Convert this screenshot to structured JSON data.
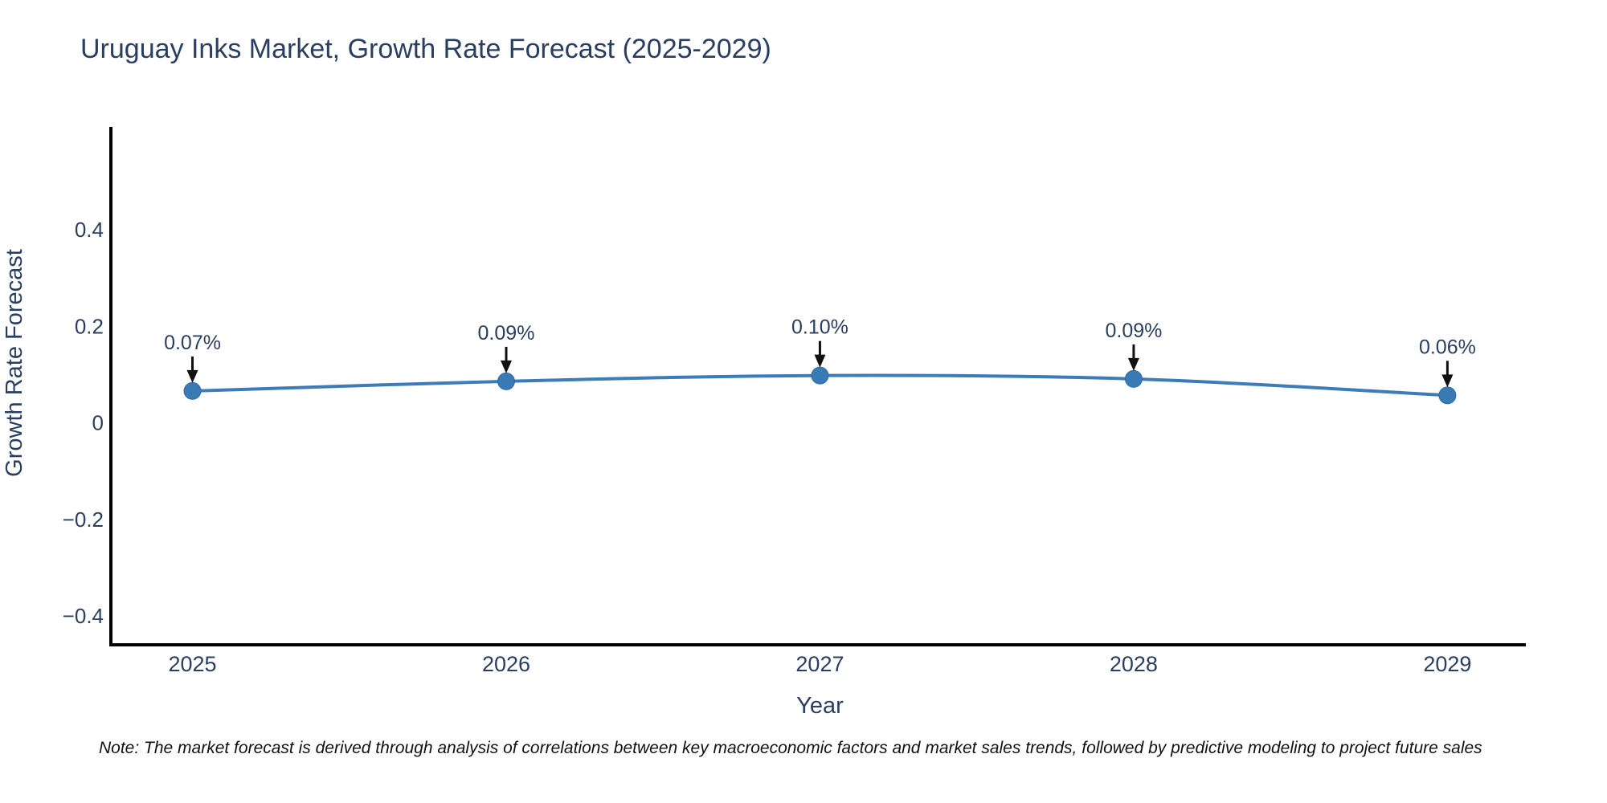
{
  "chart_data": {
    "type": "line",
    "title": "Uruguay Inks Market, Growth Rate Forecast (2025-2029)",
    "xlabel": "Year",
    "ylabel": "Growth Rate Forecast",
    "x": [
      2025,
      2026,
      2027,
      2028,
      2029
    ],
    "xticklabels": [
      "2025",
      "2026",
      "2027",
      "2028",
      "2029"
    ],
    "values": [
      0.066,
      0.086,
      0.098,
      0.091,
      0.057
    ],
    "point_labels": [
      "0.07%",
      "0.09%",
      "0.10%",
      "0.09%",
      "0.06%"
    ],
    "yticks": [
      {
        "value": 0.4,
        "label": "0.4"
      },
      {
        "value": 0.2,
        "label": "0.2"
      },
      {
        "value": 0,
        "label": "0"
      },
      {
        "value": -0.2,
        "label": "−0.2"
      },
      {
        "value": -0.4,
        "label": "−0.4"
      }
    ],
    "ylim": [
      -0.46,
      0.61
    ],
    "xlim_years": [
      2024.74,
      2029.25
    ],
    "grid": false,
    "legend": "none",
    "line_shape": "spline",
    "colors": {
      "line": "#3d7cb8",
      "marker_fill": "#3979b4",
      "marker_edge": "#2e6ba3",
      "axis": "#000000",
      "tick_text": "#2a3f5f",
      "annotation_text": "#2a3f5f",
      "annotation_arrow": "#111111"
    }
  },
  "note": {
    "text": "Note: The market forecast is derived through analysis of correlations between key macroeconomic factors and market sales trends, followed by predictive modeling to project future sales"
  }
}
